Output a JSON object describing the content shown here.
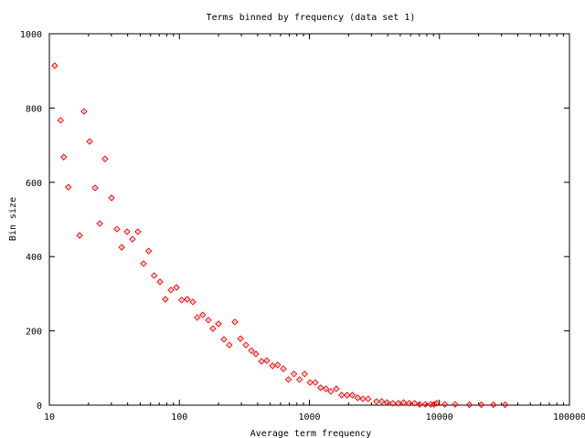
{
  "chart_data": {
    "type": "scatter",
    "title": "Terms binned by frequency (data set 1)",
    "xlabel": "Average term frequency",
    "ylabel": "Bin size",
    "xscale": "log",
    "xlim": [
      10,
      100000
    ],
    "ylim": [
      0,
      1000
    ],
    "xticks": [
      10,
      100,
      1000,
      10000,
      100000
    ],
    "xtick_labels": [
      "10",
      "100",
      "1000",
      "10000",
      "100000"
    ],
    "yticks": [
      0,
      200,
      400,
      600,
      800,
      1000
    ],
    "ytick_labels": [
      "0",
      "200",
      "400",
      "600",
      "800",
      "1000"
    ],
    "grid": false,
    "legend": "none",
    "point_color": "#ff0000",
    "series": [
      {
        "name": "data set 1",
        "x": [
          11.0,
          12.2,
          12.9,
          14.0,
          17.1,
          18.5,
          20.4,
          22.5,
          24.4,
          26.8,
          30.1,
          33.1,
          36,
          39.6,
          43.6,
          48,
          53,
          58,
          64,
          71,
          78,
          86,
          95,
          104,
          115,
          127,
          137,
          151,
          167,
          181,
          200,
          220,
          242,
          267,
          295,
          325,
          358,
          388,
          428,
          470,
          520,
          570,
          630,
          690,
          760,
          840,
          920,
          1010,
          1110,
          1220,
          1340,
          1460,
          1610,
          1770,
          1950,
          2140,
          2350,
          2580,
          2830,
          3280,
          3600,
          3960,
          4380,
          4830,
          5300,
          5850,
          6450,
          7050,
          7800,
          8600,
          9100,
          9500,
          11000,
          13200,
          17000,
          21000,
          26000,
          32000
        ],
        "y": [
          914,
          767,
          668,
          587,
          457,
          791,
          710,
          585,
          489,
          663,
          558,
          474,
          425,
          467,
          447,
          467,
          381,
          415,
          349,
          332,
          285,
          310,
          317,
          283,
          285,
          278,
          236,
          243,
          229,
          206,
          219,
          177,
          162,
          224,
          179,
          162,
          147,
          138,
          118,
          120,
          106,
          108,
          98,
          69,
          84,
          69,
          84,
          61,
          61,
          47,
          44,
          37,
          44,
          27,
          27,
          27,
          20,
          17,
          17,
          10,
          10,
          7,
          5,
          5,
          7,
          5,
          5,
          2,
          2,
          2,
          2,
          5,
          2,
          2,
          1,
          1,
          1,
          1
        ]
      }
    ]
  }
}
